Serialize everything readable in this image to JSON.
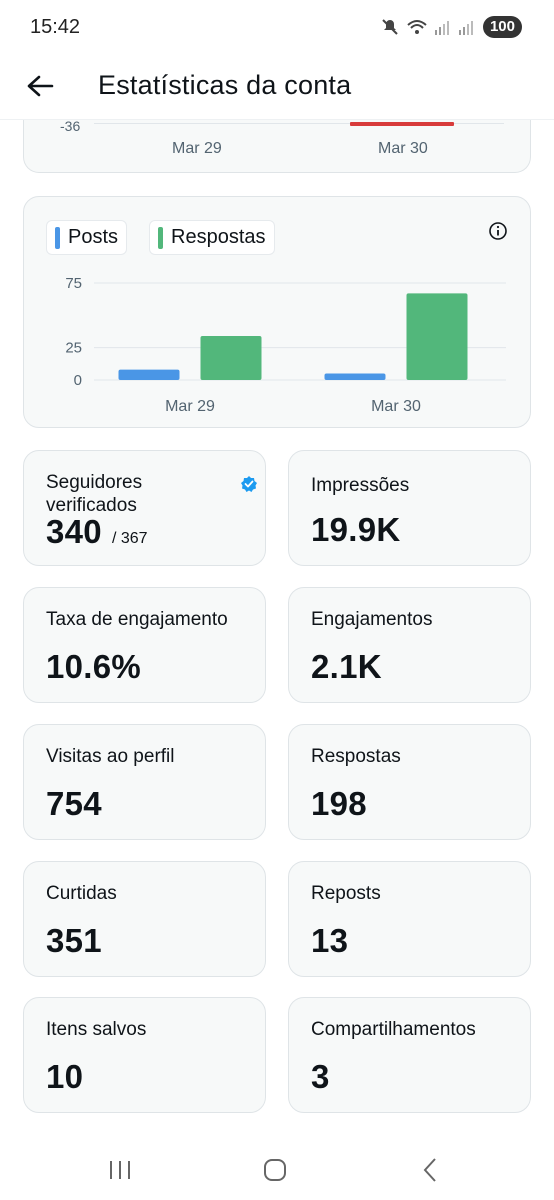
{
  "status_bar": {
    "time": "15:42",
    "battery": "100"
  },
  "header": {
    "title": "Estatísticas da conta"
  },
  "top_chart": {
    "y_tick": "-36",
    "x_labels": [
      "Mar 29",
      "Mar 30"
    ]
  },
  "chart_data": {
    "type": "bar",
    "categories": [
      "Mar 29",
      "Mar 30"
    ],
    "series": [
      {
        "name": "Posts",
        "values": [
          8,
          5
        ],
        "color": "#4a96e6"
      },
      {
        "name": "Respostas",
        "values": [
          34,
          67
        ],
        "color": "#52b77b"
      }
    ],
    "yticks": [
      "75",
      "25",
      "0"
    ],
    "ylim": [
      0,
      75
    ],
    "legend": "top-left",
    "grid": true
  },
  "stats": [
    {
      "label": "Seguidores verificados",
      "value": "340",
      "sub": "/ 367",
      "icon": "verified-badge-icon"
    },
    {
      "label": "Impressões",
      "value": "19.9K"
    },
    {
      "label": "Taxa de engajamento",
      "value": "10.6%"
    },
    {
      "label": "Engajamentos",
      "value": "2.1K"
    },
    {
      "label": "Visitas ao perfil",
      "value": "754"
    },
    {
      "label": "Respostas",
      "value": "198"
    },
    {
      "label": "Curtidas",
      "value": "351"
    },
    {
      "label": "Reposts",
      "value": "13"
    },
    {
      "label": "Itens salvos",
      "value": "10"
    },
    {
      "label": "Compartilhamentos",
      "value": "3"
    }
  ],
  "colors": {
    "accent": "#1d9bf0",
    "posts": "#4a96e6",
    "respostas": "#52b77b",
    "negative": "#d83b3b"
  }
}
